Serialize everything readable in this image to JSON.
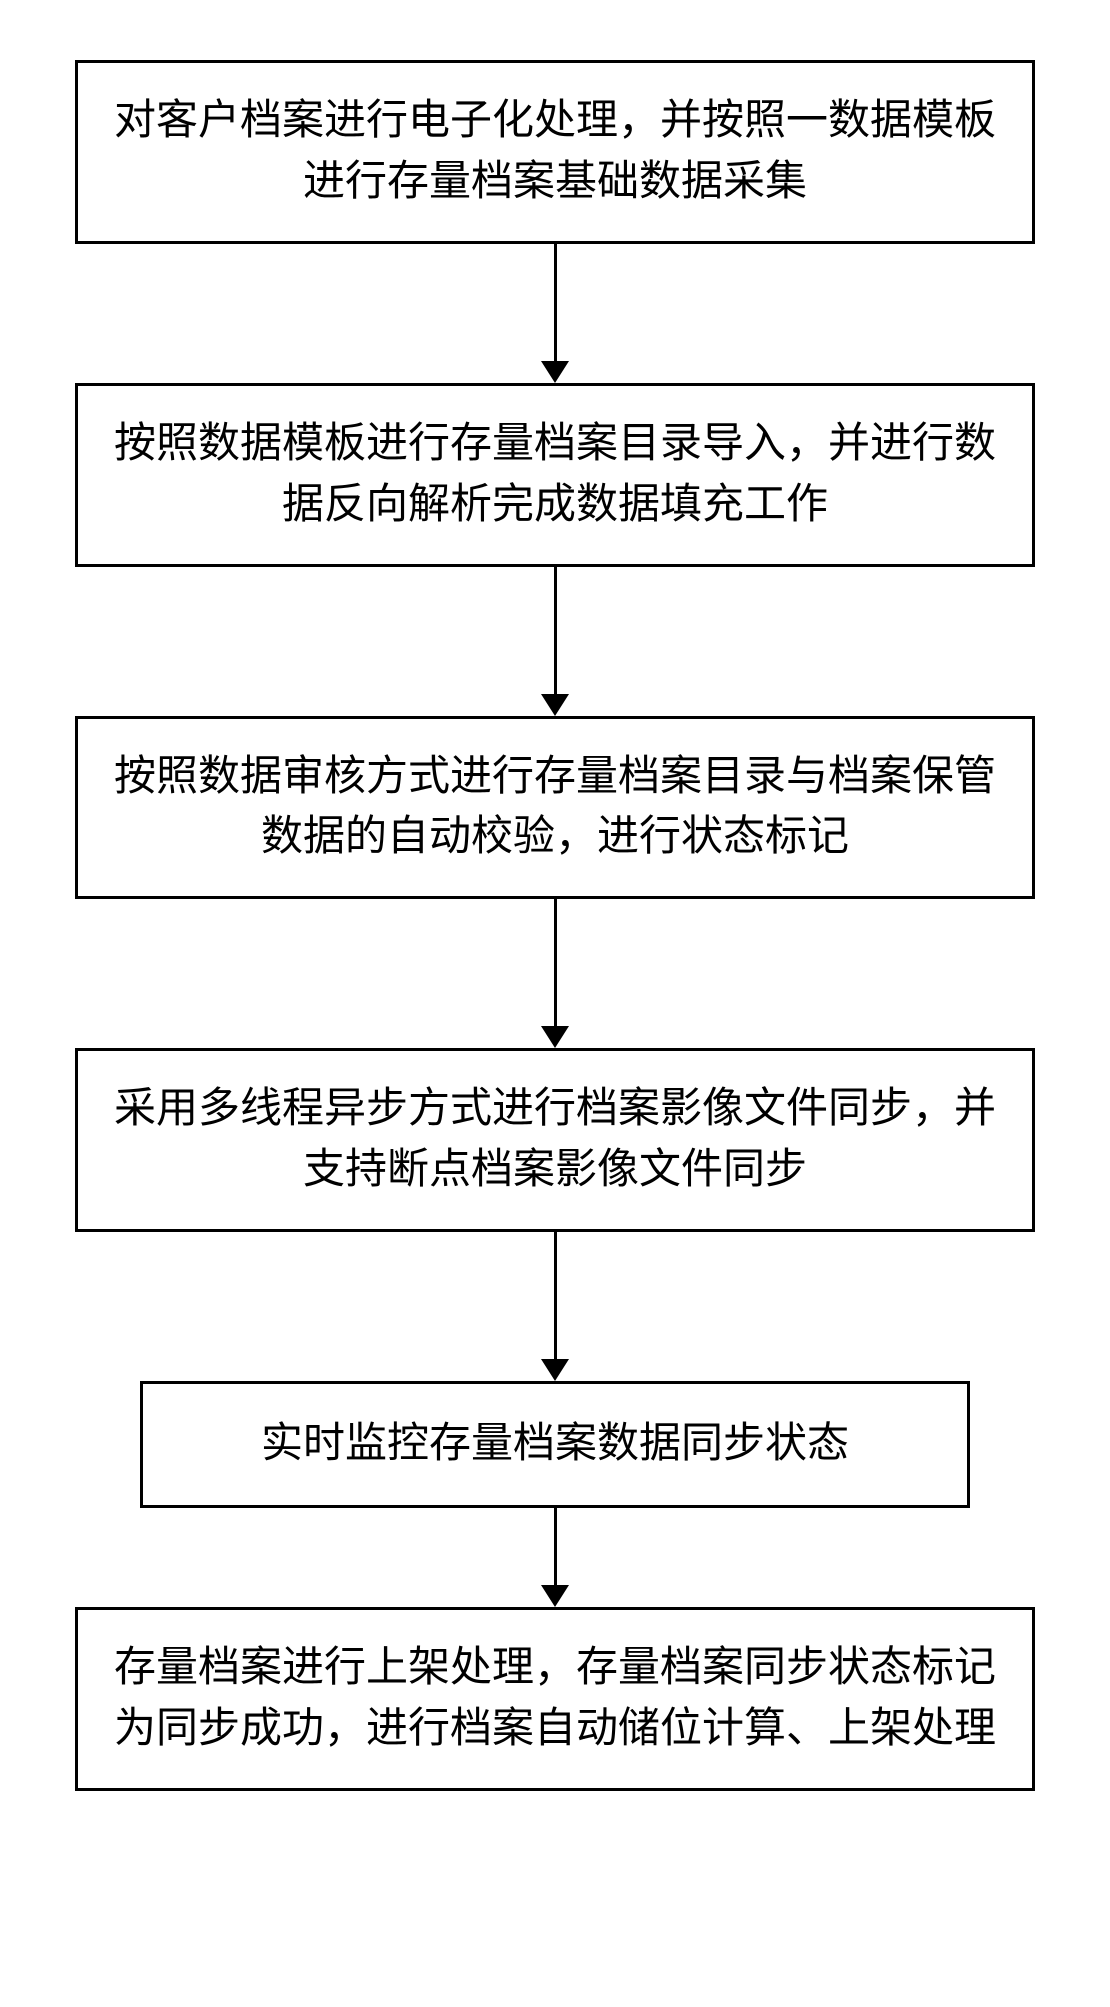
{
  "flowchart": {
    "type": "flowchart",
    "direction": "vertical",
    "background_color": "#ffffff",
    "box_border_color": "#000000",
    "box_border_width": 3,
    "arrow_color": "#000000",
    "arrow_line_width": 3,
    "arrow_head_size": 22,
    "text_color": "#000000",
    "font_size": 42,
    "font_family": "SimSun",
    "box_width_wide": 960,
    "box_width_narrow": 830,
    "steps": [
      {
        "id": "step1",
        "text": "对客户档案进行电子化处理，并按照一数据模板进行存量档案基础数据采集",
        "width": "wide",
        "arrow_after_height": 140
      },
      {
        "id": "step2",
        "text": "按照数据模板进行存量档案目录导入，并进行数据反向解析完成数据填充工作",
        "width": "wide",
        "arrow_after_height": 150
      },
      {
        "id": "step3",
        "text": "按照数据审核方式进行存量档案目录与档案保管数据的自动校验，进行状态标记",
        "width": "wide",
        "arrow_after_height": 150
      },
      {
        "id": "step4",
        "text": "采用多线程异步方式进行档案影像文件同步，并支持断点档案影像文件同步",
        "width": "wide",
        "arrow_after_height": 150
      },
      {
        "id": "step5",
        "text": "实时监控存量档案数据同步状态",
        "width": "narrow",
        "arrow_after_height": 100
      },
      {
        "id": "step6",
        "text": "存量档案进行上架处理，存量档案同步状态标记为同步成功，进行档案自动储位计算、上架处理",
        "width": "wide",
        "arrow_after_height": 0
      }
    ]
  }
}
